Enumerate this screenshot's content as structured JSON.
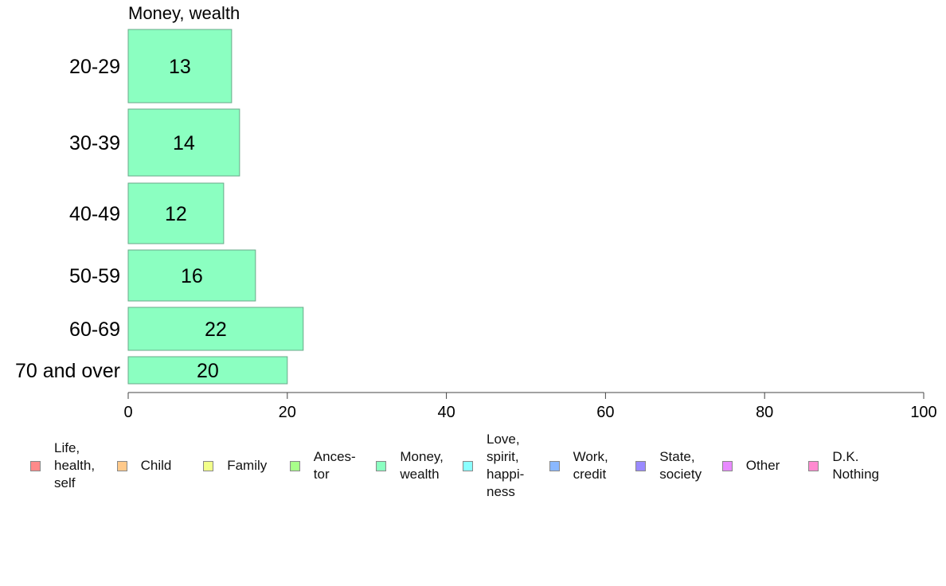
{
  "chart_data": {
    "type": "bar",
    "orientation": "horizontal",
    "title": "Money, wealth",
    "categories": [
      "20-29",
      "30-39",
      "40-49",
      "50-59",
      "60-69",
      "70 and over"
    ],
    "values": [
      13,
      14,
      12,
      16,
      22,
      20
    ],
    "bar_color": "#8bffc1",
    "bar_border_color": "#6aa889",
    "xlim": [
      0,
      100
    ],
    "xticks": [
      "0",
      "20",
      "40",
      "60",
      "80",
      "100"
    ],
    "xlabel": "",
    "ylabel": "",
    "grid": false,
    "legend_position": "bottom",
    "legend": [
      {
        "label": "Life,\nhealth,\nself",
        "color": "#ff8a8a"
      },
      {
        "label": "Child",
        "color": "#ffc98a"
      },
      {
        "label": "Family",
        "color": "#f2ff8a"
      },
      {
        "label": "Ances-\ntor",
        "color": "#a8ff8a"
      },
      {
        "label": "Money,\nwealth",
        "color": "#8bffc1"
      },
      {
        "label": "Love,\nspirit,\nhappi-\nness",
        "color": "#8affff"
      },
      {
        "label": "Work,\ncredit",
        "color": "#8ab8ff"
      },
      {
        "label": "State,\nsociety",
        "color": "#9a8aff"
      },
      {
        "label": "Other",
        "color": "#e88aff"
      },
      {
        "label": "D.K.\nNothing",
        "color": "#ff8ad0"
      }
    ]
  }
}
